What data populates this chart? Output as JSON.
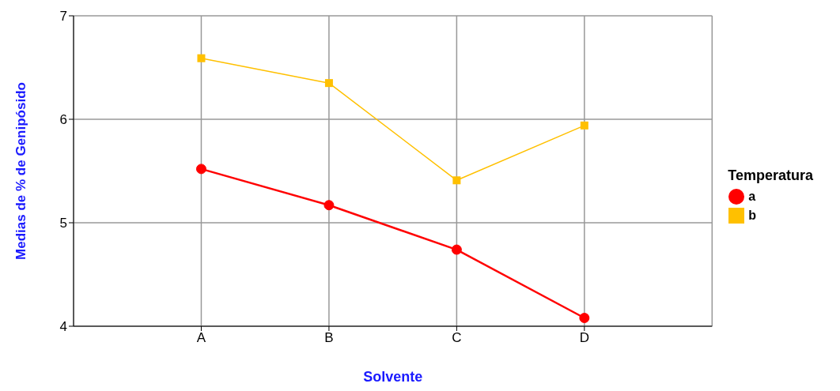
{
  "chart_data": {
    "type": "line",
    "xlabel": "Solvente",
    "ylabel": "Medias de % de Genipósido",
    "legend_title": "Temperatura",
    "categories": [
      "A",
      "B",
      "C",
      "D"
    ],
    "series": [
      {
        "name": "a",
        "color": "#ff0000",
        "marker": "circle",
        "values": [
          5.52,
          5.17,
          4.74,
          4.08
        ]
      },
      {
        "name": "b",
        "color": "#ffc000",
        "marker": "square",
        "values": [
          6.59,
          6.35,
          5.41,
          5.94
        ]
      }
    ],
    "ylim": [
      4,
      7
    ],
    "yticks": [
      4,
      5,
      6,
      7
    ],
    "grid": true,
    "legend": "right",
    "line_style": "solid"
  }
}
